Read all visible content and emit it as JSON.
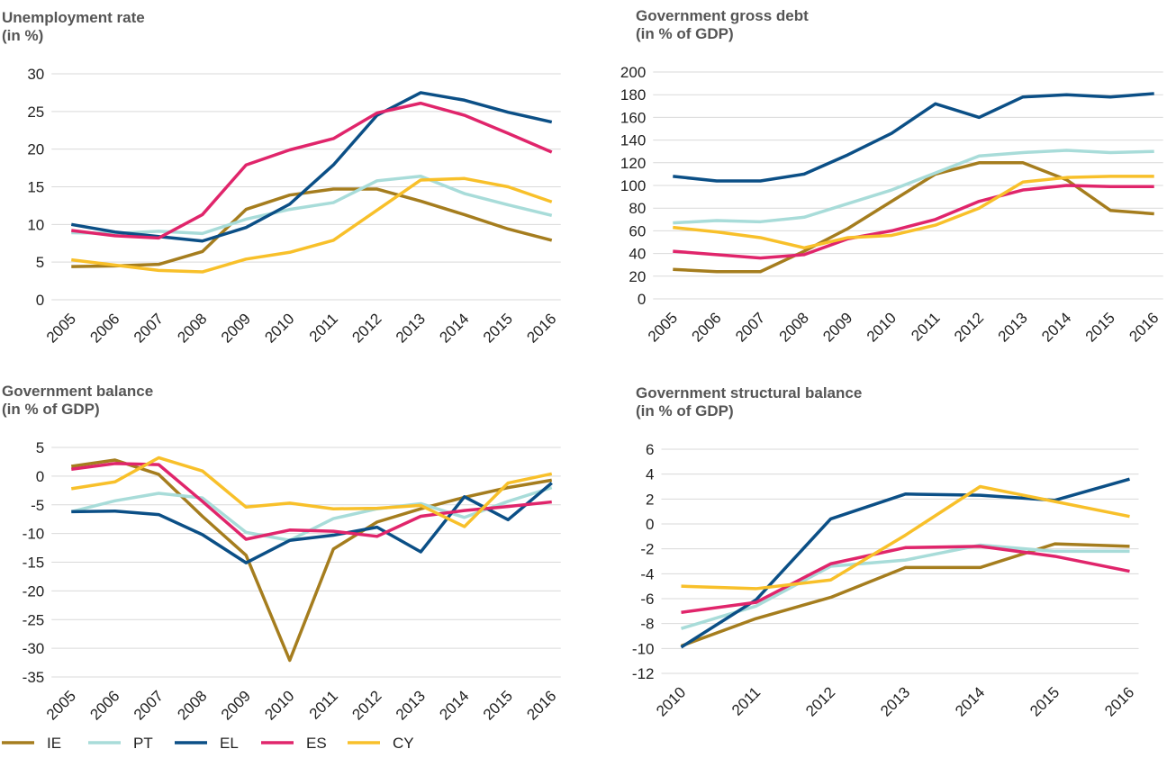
{
  "chart_data": [
    {
      "type": "line",
      "title": "Unemployment rate",
      "subtitle": "(in %)",
      "categories": [
        "2005",
        "2006",
        "2007",
        "2008",
        "2009",
        "2010",
        "2011",
        "2012",
        "2013",
        "2014",
        "2015",
        "2016"
      ],
      "ylim": [
        0,
        30
      ],
      "yticks": [
        0,
        5,
        10,
        15,
        20,
        25,
        30
      ],
      "grid": true,
      "series": [
        {
          "name": "IE",
          "color": "#a57d1e",
          "values": [
            4.4,
            4.5,
            4.7,
            6.4,
            12.0,
            13.9,
            14.7,
            14.7,
            13.1,
            11.3,
            9.4,
            7.9
          ]
        },
        {
          "name": "PT",
          "color": "#a8dcd9",
          "values": [
            8.9,
            8.8,
            9.1,
            8.8,
            10.7,
            12.0,
            12.9,
            15.8,
            16.4,
            14.1,
            12.6,
            11.2
          ]
        },
        {
          "name": "EL",
          "color": "#0b4f86",
          "values": [
            10.0,
            9.0,
            8.4,
            7.8,
            9.6,
            12.7,
            17.9,
            24.5,
            27.5,
            26.5,
            24.9,
            23.6
          ]
        },
        {
          "name": "ES",
          "color": "#e0256b",
          "values": [
            9.2,
            8.5,
            8.2,
            11.3,
            17.9,
            19.9,
            21.4,
            24.8,
            26.1,
            24.5,
            22.1,
            19.6
          ]
        },
        {
          "name": "CY",
          "color": "#f8c02a",
          "values": [
            5.3,
            4.6,
            3.9,
            3.7,
            5.4,
            6.3,
            7.9,
            11.9,
            15.9,
            16.1,
            15.0,
            13.0
          ]
        }
      ]
    },
    {
      "type": "line",
      "title": "Government gross debt",
      "subtitle": "(in % of GDP)",
      "categories": [
        "2005",
        "2006",
        "2007",
        "2008",
        "2009",
        "2010",
        "2011",
        "2012",
        "2013",
        "2014",
        "2015",
        "2016"
      ],
      "ylim": [
        0,
        200
      ],
      "yticks": [
        0,
        20,
        40,
        60,
        80,
        100,
        120,
        140,
        160,
        180,
        200
      ],
      "grid": true,
      "series": [
        {
          "name": "IE",
          "color": "#a57d1e",
          "values": [
            26,
            24,
            24,
            42,
            62,
            86,
            110,
            120,
            120,
            105,
            78,
            75
          ]
        },
        {
          "name": "PT",
          "color": "#a8dcd9",
          "values": [
            67,
            69,
            68,
            72,
            84,
            96,
            111,
            126,
            129,
            131,
            129,
            130
          ]
        },
        {
          "name": "EL",
          "color": "#0b4f86",
          "values": [
            108,
            104,
            104,
            110,
            127,
            146,
            172,
            160,
            178,
            180,
            178,
            181
          ]
        },
        {
          "name": "ES",
          "color": "#e0256b",
          "values": [
            42,
            39,
            36,
            39,
            53,
            60,
            70,
            86,
            96,
            100,
            99,
            99
          ]
        },
        {
          "name": "CY",
          "color": "#f8c02a",
          "values": [
            63,
            59,
            54,
            45,
            54,
            56,
            65,
            80,
            103,
            107,
            108,
            108
          ]
        }
      ]
    },
    {
      "type": "line",
      "title": "Government balance",
      "subtitle": "(in % of GDP)",
      "categories": [
        "2005",
        "2006",
        "2007",
        "2008",
        "2009",
        "2010",
        "2011",
        "2012",
        "2013",
        "2014",
        "2015",
        "2016"
      ],
      "ylim": [
        -35,
        5
      ],
      "yticks": [
        5,
        0,
        -5,
        -10,
        -15,
        -20,
        -25,
        -30,
        -35
      ],
      "grid": true,
      "series": [
        {
          "name": "IE",
          "color": "#a57d1e",
          "values": [
            1.7,
            2.8,
            0.3,
            -7.0,
            -13.8,
            -32.1,
            -12.7,
            -8.0,
            -5.7,
            -3.7,
            -2.0,
            -0.7
          ]
        },
        {
          "name": "PT",
          "color": "#a8dcd9",
          "values": [
            -6.2,
            -4.3,
            -3.0,
            -3.8,
            -9.8,
            -11.2,
            -7.4,
            -5.7,
            -4.8,
            -7.2,
            -4.4,
            -2.0
          ]
        },
        {
          "name": "EL",
          "color": "#0b4f86",
          "values": [
            -6.2,
            -6.1,
            -6.7,
            -10.2,
            -15.1,
            -11.2,
            -10.3,
            -8.9,
            -13.2,
            -3.6,
            -7.6,
            -1.2
          ]
        },
        {
          "name": "ES",
          "color": "#e0256b",
          "values": [
            1.2,
            2.2,
            2.0,
            -4.4,
            -11.0,
            -9.4,
            -9.6,
            -10.5,
            -7.0,
            -6.0,
            -5.3,
            -4.5
          ]
        },
        {
          "name": "CY",
          "color": "#f8c02a",
          "values": [
            -2.2,
            -1.0,
            3.2,
            0.9,
            -5.4,
            -4.7,
            -5.7,
            -5.6,
            -5.1,
            -8.8,
            -1.2,
            0.4
          ]
        }
      ]
    },
    {
      "type": "line",
      "title": "Government structural balance",
      "subtitle": "(in % of GDP)",
      "categories": [
        "2010",
        "2011",
        "2012",
        "2013",
        "2014",
        "2015",
        "2016"
      ],
      "ylim": [
        -12,
        6
      ],
      "yticks": [
        6,
        4,
        2,
        0,
        -2,
        -4,
        -6,
        -8,
        -10,
        -12
      ],
      "grid": true,
      "series": [
        {
          "name": "IE",
          "color": "#a57d1e",
          "values": [
            -9.8,
            -7.6,
            -5.9,
            -3.5,
            -3.5,
            -1.6,
            -1.8
          ]
        },
        {
          "name": "PT",
          "color": "#a8dcd9",
          "values": [
            -8.4,
            -6.6,
            -3.4,
            -2.9,
            -1.7,
            -2.2,
            -2.2
          ]
        },
        {
          "name": "EL",
          "color": "#0b4f86",
          "values": [
            -9.9,
            -6.1,
            0.4,
            2.4,
            2.3,
            1.9,
            3.6
          ]
        },
        {
          "name": "ES",
          "color": "#e0256b",
          "values": [
            -7.1,
            -6.3,
            -3.2,
            -1.9,
            -1.8,
            -2.6,
            -3.8
          ]
        },
        {
          "name": "CY",
          "color": "#f8c02a",
          "values": [
            -5.0,
            -5.2,
            -4.5,
            -0.9,
            3.0,
            1.8,
            0.6
          ]
        }
      ]
    }
  ]
}
